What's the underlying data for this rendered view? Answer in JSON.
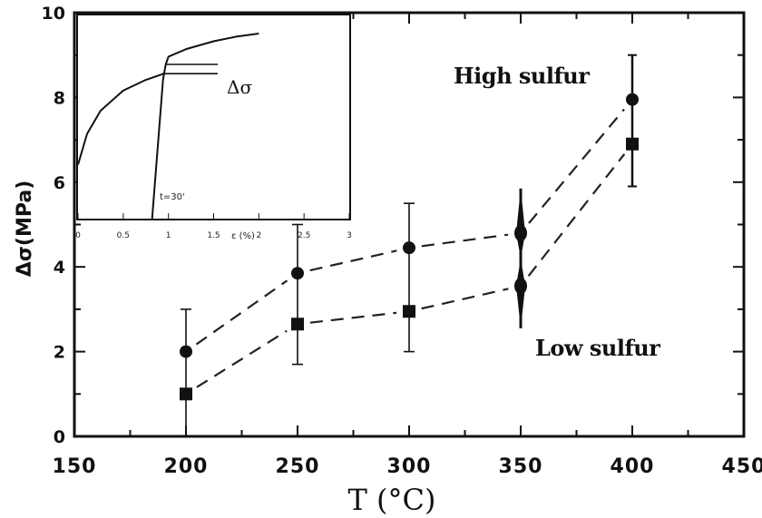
{
  "chart_data": [
    {
      "type": "scatter",
      "title": "",
      "xlabel": "T (°C)",
      "ylabel": "Δσ(MPa)",
      "xlim": [
        150,
        450
      ],
      "ylim": [
        0,
        10
      ],
      "xticks": [
        "150",
        "200",
        "250",
        "300",
        "350",
        "400",
        "450"
      ],
      "yticks": [
        "0",
        "2",
        "4",
        "6",
        "8",
        "10"
      ],
      "grid": false,
      "legend": "none",
      "annotations": [
        "High sulfur",
        "Low sulfur"
      ],
      "series": [
        {
          "marker": "circle",
          "line": "dashed",
          "x": [
            200,
            250,
            300,
            350,
            400
          ],
          "y": [
            2.0,
            3.85,
            4.45,
            4.8,
            7.95
          ],
          "yerr": [
            0,
            0,
            0,
            1.05,
            1.05
          ]
        },
        {
          "marker": "square",
          "line": "dashed",
          "x": [
            200,
            250,
            300,
            350,
            400
          ],
          "y": [
            1.0,
            2.65,
            2.95,
            3.55,
            6.9
          ],
          "yerr": [
            2.0,
            1.0,
            1.0,
            1.05,
            1.0
          ]
        }
      ],
      "errorbars_shared": [
        {
          "x": 250,
          "low": 1.7,
          "high": 5.0
        },
        {
          "x": 300,
          "low": 2.0,
          "high": 5.5
        }
      ]
    },
    {
      "type": "line",
      "title": "",
      "xlabel": "ε (%)",
      "ylabel": "",
      "xlim": [
        0,
        3
      ],
      "xticks": [
        "0",
        "0.5",
        "1",
        "1.5",
        "2",
        "2.5",
        "3"
      ],
      "annotations": [
        "Δσ",
        "t=30'"
      ],
      "series": [
        {
          "x": [
            0,
            0.1,
            0.25,
            0.5,
            0.75,
            0.95
          ],
          "y": [
            0.35,
            0.55,
            0.7,
            0.83,
            0.9,
            0.94
          ]
        },
        {
          "x": [
            0.82,
            0.86,
            0.9,
            0.94,
            0.97
          ],
          "y": [
            0.0,
            0.3,
            0.6,
            0.9,
            1.0
          ]
        },
        {
          "x": [
            0.97,
            1.0,
            1.2,
            1.5,
            1.75,
            2.0
          ],
          "y": [
            1.0,
            1.05,
            1.1,
            1.15,
            1.18,
            1.2
          ]
        }
      ]
    }
  ]
}
